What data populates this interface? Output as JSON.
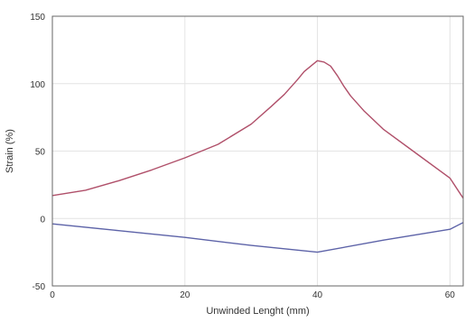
{
  "chart_data": {
    "type": "line",
    "title": "",
    "xlabel": "Unwinded Lenght (mm)",
    "ylabel": "Strain (%)",
    "xlim": [
      0,
      62
    ],
    "ylim": [
      -50,
      150
    ],
    "x_ticks": [
      0,
      20,
      40,
      60
    ],
    "y_ticks": [
      -50,
      0,
      50,
      100,
      150
    ],
    "grid": true,
    "legend": "none",
    "series": [
      {
        "color": "#b0506a",
        "x": [
          0,
          5,
          10,
          15,
          20,
          25,
          30,
          33,
          35,
          37,
          38,
          39,
          40,
          41,
          42,
          43,
          44,
          45,
          47,
          50,
          55,
          60,
          62
        ],
        "y": [
          17,
          21,
          28,
          36,
          45,
          55,
          70,
          83,
          92,
          103,
          109,
          113,
          117,
          116,
          113,
          106,
          98,
          91,
          80,
          66,
          48,
          30,
          15
        ]
      },
      {
        "color": "#5d63a8",
        "x": [
          0,
          10,
          20,
          30,
          40,
          50,
          60,
          62
        ],
        "y": [
          -4,
          -9,
          -14,
          -20,
          -25,
          -16,
          -8,
          -3
        ]
      }
    ]
  }
}
